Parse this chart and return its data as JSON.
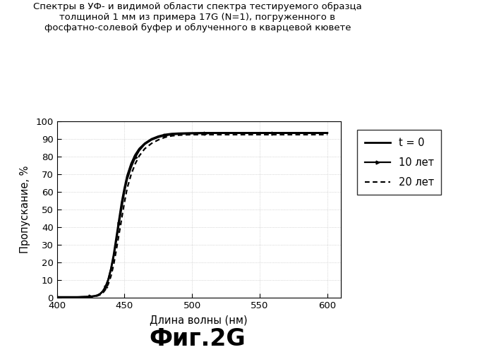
{
  "title_line1": "Спектры в УФ- и видимой области спектра тестируемого образца",
  "title_line2": "толщиной 1 мм из примера 17G (N=1), погруженного в",
  "title_line3": "фосфатно-солевой буфер и облученного в кварцевой кювете",
  "xlabel": "Длина волны (нм)",
  "ylabel": "Пропускание, %",
  "figcaption": "Фиг.2G",
  "xmin": 400,
  "xmax": 610,
  "ymin": 0,
  "ymax": 100,
  "xticks": [
    400,
    450,
    500,
    550,
    600
  ],
  "yticks": [
    0,
    10,
    20,
    30,
    40,
    50,
    60,
    70,
    80,
    90,
    100
  ],
  "legend": [
    "t = 0",
    "10 лет",
    "20 лет"
  ],
  "curve_t0": {
    "x": [
      400,
      405,
      410,
      415,
      420,
      425,
      428,
      430,
      432,
      434,
      436,
      438,
      440,
      442,
      444,
      446,
      448,
      450,
      452,
      455,
      458,
      461,
      465,
      470,
      475,
      480,
      485,
      490,
      495,
      500,
      510,
      520,
      530,
      540,
      550,
      560,
      570,
      580,
      590,
      600
    ],
    "y": [
      0.2,
      0.2,
      0.2,
      0.2,
      0.3,
      0.5,
      0.8,
      1.2,
      2.0,
      3.5,
      6.0,
      10.0,
      16.0,
      24.0,
      34.0,
      44.0,
      54.0,
      62.0,
      69.0,
      76.0,
      81.0,
      84.5,
      87.5,
      90.0,
      91.5,
      92.5,
      93.0,
      93.2,
      93.3,
      93.4,
      93.5,
      93.5,
      93.5,
      93.5,
      93.5,
      93.5,
      93.5,
      93.5,
      93.5,
      93.5
    ]
  },
  "curve_10": {
    "x": [
      400,
      405,
      410,
      415,
      420,
      425,
      428,
      430,
      432,
      434,
      436,
      438,
      440,
      442,
      444,
      446,
      448,
      450,
      452,
      455,
      458,
      461,
      465,
      470,
      475,
      480,
      485,
      490,
      495,
      500,
      510,
      520,
      530,
      540,
      550,
      560,
      570,
      580,
      590,
      600
    ],
    "y": [
      0.2,
      0.2,
      0.2,
      0.2,
      0.3,
      0.5,
      0.8,
      1.2,
      2.0,
      3.5,
      6.0,
      10.0,
      16.0,
      23.0,
      32.0,
      42.0,
      51.0,
      60.0,
      67.0,
      74.0,
      79.5,
      83.5,
      87.0,
      89.5,
      91.0,
      92.0,
      92.5,
      92.8,
      93.0,
      93.1,
      93.2,
      93.3,
      93.3,
      93.3,
      93.3,
      93.3,
      93.3,
      93.3,
      93.3,
      93.3
    ]
  },
  "curve_20": {
    "x": [
      400,
      405,
      410,
      415,
      420,
      425,
      428,
      430,
      432,
      434,
      436,
      438,
      440,
      442,
      444,
      446,
      448,
      450,
      452,
      455,
      458,
      461,
      465,
      470,
      475,
      480,
      485,
      490,
      495,
      500,
      510,
      520,
      530,
      540,
      550,
      560,
      570,
      580,
      590,
      600
    ],
    "y": [
      0.2,
      0.2,
      0.2,
      0.2,
      0.3,
      0.4,
      0.6,
      0.9,
      1.5,
      2.5,
      4.5,
      7.5,
      12.0,
      18.5,
      27.0,
      36.0,
      45.0,
      54.0,
      62.0,
      70.0,
      76.0,
      80.5,
      84.5,
      87.5,
      89.5,
      91.0,
      91.8,
      92.2,
      92.4,
      92.5,
      92.5,
      92.5,
      92.5,
      92.5,
      92.5,
      92.5,
      92.5,
      92.5,
      92.5,
      92.5
    ]
  },
  "bg_color": "#ffffff",
  "line_color": "#000000",
  "grid_color": "#bbbbbb"
}
